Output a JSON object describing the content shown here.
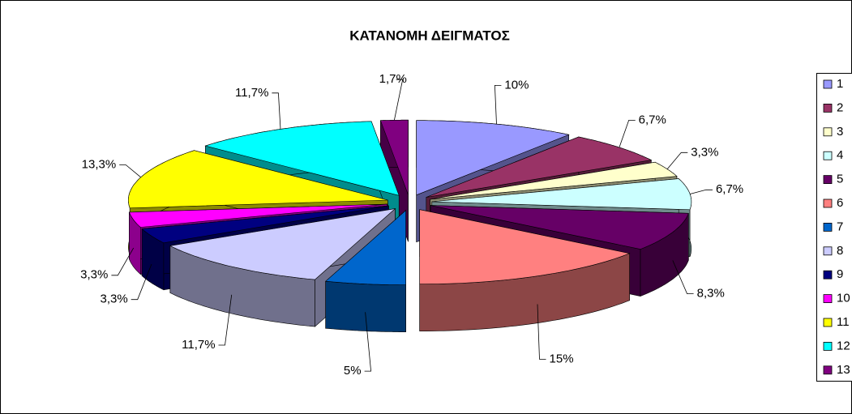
{
  "chart_data": {
    "type": "pie3d",
    "title": "ΚΑΤΑΝΟΜΗ ΔΕΙΓΜΑΤΟΣ",
    "categories": [
      "1",
      "2",
      "3",
      "4",
      "5",
      "6",
      "7",
      "8",
      "9",
      "10",
      "11",
      "12",
      "13"
    ],
    "values": [
      10,
      6.7,
      3.3,
      6.7,
      8.3,
      15,
      5,
      11.7,
      3.3,
      3.3,
      13.3,
      11.7,
      1.7
    ],
    "value_labels": [
      "10%",
      "6,7%",
      "3,3%",
      "6,7%",
      "8,3%",
      "15%",
      "5%",
      "11,7%",
      "3,3%",
      "3,3%",
      "13,3%",
      "11,7%",
      "1,7%"
    ],
    "colors": [
      "#9999FF",
      "#993366",
      "#FFFFCC",
      "#CCFFFF",
      "#660066",
      "#FF8080",
      "#0066CC",
      "#CCCCFF",
      "#000080",
      "#FF00FF",
      "#FFFF00",
      "#00FFFF",
      "#800080"
    ],
    "legend": "right"
  }
}
